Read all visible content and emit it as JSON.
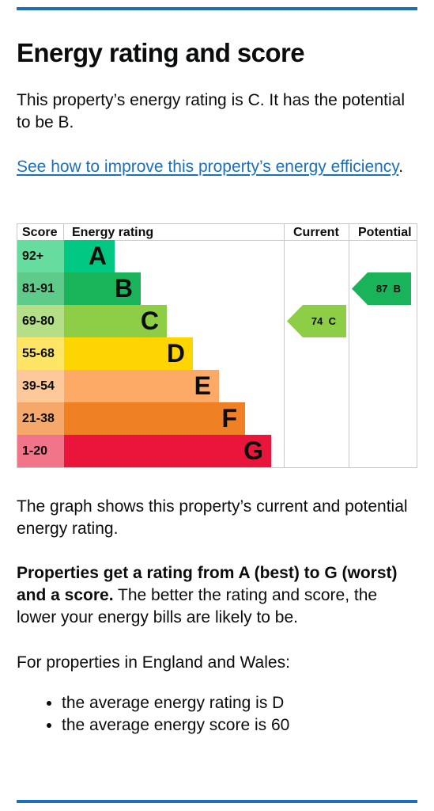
{
  "page": {
    "title": "Energy rating and score",
    "intro": "This property’s energy rating is C. It has the potential to be B.",
    "improve_link": "See how to improve this property’s energy efficiency",
    "link_suffix": ".",
    "graph_note": "The graph shows this property’s current and potential energy rating.",
    "rating_bold": "Properties get a rating from A (best) to G (worst) and a score.",
    "rating_rest": " The better the rating and score, the lower your energy bills are likely to be.",
    "england_wales": "For properties in England and Wales:",
    "averages": [
      "the average energy rating is D",
      "the average energy score is 60"
    ]
  },
  "chart": {
    "headers": {
      "score": "Score",
      "rating": "Energy rating",
      "current": "Current",
      "potential": "Potential"
    },
    "bands": [
      {
        "range": "92+",
        "letter": "A",
        "color": "#00c781",
        "score_bg": "#66dd9f"
      },
      {
        "range": "81-91",
        "letter": "B",
        "color": "#19b459",
        "score_bg": "#5ecb8a"
      },
      {
        "range": "69-80",
        "letter": "C",
        "color": "#8dce46",
        "score_bg": "#b4de87"
      },
      {
        "range": "55-68",
        "letter": "D",
        "color": "#ffd500",
        "score_bg": "#ffe566"
      },
      {
        "range": "39-54",
        "letter": "E",
        "color": "#fcaa65",
        "score_bg": "#fdc99a"
      },
      {
        "range": "21-38",
        "letter": "F",
        "color": "#ef8023",
        "score_bg": "#f5a86a"
      },
      {
        "range": "1-20",
        "letter": "G",
        "color": "#e9153b",
        "score_bg": "#f27489"
      }
    ],
    "current": {
      "score": "74",
      "letter": "C",
      "band": "C",
      "color": "#8dce46"
    },
    "potential": {
      "score": "87",
      "letter": "B",
      "band": "B",
      "color": "#19b459"
    }
  }
}
